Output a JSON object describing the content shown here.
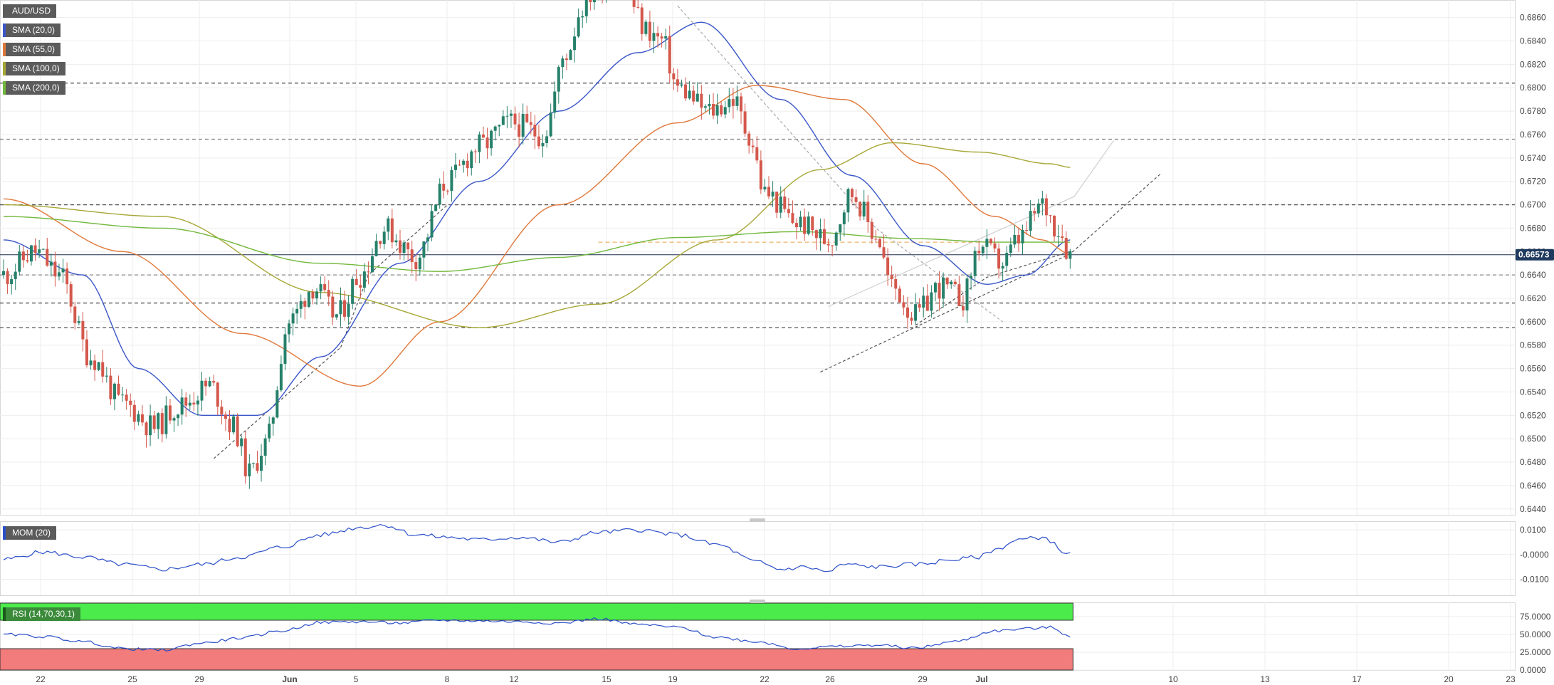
{
  "legend": {
    "symbol": "AUD/USD",
    "sma20": "SMA (20,0)",
    "sma55": "SMA (55,0)",
    "sma100": "SMA (100,0)",
    "sma200": "SMA (200,0)",
    "mom": "MOM (20)",
    "rsi": "RSI (14,70,30,1)"
  },
  "colors": {
    "up": "#26806a",
    "down": "#d4584c",
    "sma20": "#3a56c8",
    "sma55": "#e0783a",
    "sma100": "#a7a736",
    "sma200": "#72b83c",
    "price_line": "#1f2f4f",
    "mom": "#2b4fc8",
    "rsi": "#2b4fc8",
    "rsi_overbought": "#4ceb4c",
    "rsi_oversold": "#f27b7b",
    "last_price_bg": "#1f3a5f"
  },
  "chart_data": [
    {
      "type": "candlestick",
      "title": "AUD/USD",
      "y_ticks": [
        "0.6860",
        "0.6840",
        "0.6820",
        "0.6800",
        "0.6780",
        "0.6760",
        "0.6740",
        "0.6720",
        "0.6700",
        "0.6680",
        "0.6660",
        "0.6640",
        "0.6620",
        "0.6600",
        "0.6580",
        "0.6560",
        "0.6540",
        "0.6520",
        "0.6500",
        "0.6480",
        "0.6460",
        "0.6440"
      ],
      "ylim": [
        0.6435,
        0.6875
      ],
      "x_ticks": [
        "22",
        "25",
        "29",
        "Jun",
        "5",
        "8",
        "12",
        "15",
        "19",
        "22",
        "26",
        "29",
        "Jul",
        "10",
        "13",
        "17",
        "20",
        "23"
      ],
      "last_price": "0.66573",
      "last_value": 0.66573,
      "horizontal_levels": [
        0.6804,
        0.6756,
        0.67,
        0.664,
        0.6616,
        0.6595
      ],
      "anchors": [
        [
          0,
          0.664
        ],
        [
          8,
          0.666
        ],
        [
          14,
          0.664
        ],
        [
          22,
          0.657
        ],
        [
          30,
          0.653
        ],
        [
          38,
          0.651
        ],
        [
          44,
          0.6528
        ],
        [
          52,
          0.6545
        ],
        [
          58,
          0.651
        ],
        [
          62,
          0.647
        ],
        [
          66,
          0.6495
        ],
        [
          72,
          0.66
        ],
        [
          78,
          0.663
        ],
        [
          84,
          0.6605
        ],
        [
          90,
          0.664
        ],
        [
          96,
          0.668
        ],
        [
          104,
          0.6655
        ],
        [
          112,
          0.672
        ],
        [
          120,
          0.675
        ],
        [
          128,
          0.677
        ],
        [
          136,
          0.676
        ],
        [
          142,
          0.683
        ],
        [
          146,
          0.687
        ],
        [
          150,
          0.689
        ],
        [
          156,
          0.689
        ],
        [
          162,
          0.685
        ],
        [
          166,
          0.684
        ],
        [
          170,
          0.68
        ],
        [
          178,
          0.678
        ],
        [
          184,
          0.679
        ],
        [
          188,
          0.676
        ],
        [
          192,
          0.671
        ],
        [
          200,
          0.6685
        ],
        [
          208,
          0.667
        ],
        [
          214,
          0.671
        ],
        [
          220,
          0.6675
        ],
        [
          224,
          0.663
        ],
        [
          230,
          0.6605
        ],
        [
          236,
          0.663
        ],
        [
          242,
          0.662
        ],
        [
          246,
          0.6665
        ],
        [
          252,
          0.665
        ],
        [
          256,
          0.667
        ],
        [
          262,
          0.67
        ],
        [
          266,
          0.668
        ],
        [
          269,
          0.6658
        ]
      ],
      "series": [
        {
          "name": "SMA (20,0)",
          "values": [
            [
              0,
              0.667
            ],
            [
              20,
              0.664
            ],
            [
              34,
              0.656
            ],
            [
              50,
              0.652
            ],
            [
              64,
              0.652
            ],
            [
              80,
              0.657
            ],
            [
              100,
              0.665
            ],
            [
              120,
              0.672
            ],
            [
              140,
              0.678
            ],
            [
              160,
              0.683
            ],
            [
              176,
              0.6856
            ],
            [
              196,
              0.679
            ],
            [
              214,
              0.6725
            ],
            [
              232,
              0.6665
            ],
            [
              248,
              0.6632
            ],
            [
              258,
              0.664
            ],
            [
              269,
              0.667
            ]
          ]
        },
        {
          "name": "SMA (55,0)",
          "values": [
            [
              0,
              0.6705
            ],
            [
              30,
              0.666
            ],
            [
              60,
              0.659
            ],
            [
              90,
              0.6545
            ],
            [
              110,
              0.66
            ],
            [
              140,
              0.67
            ],
            [
              170,
              0.677
            ],
            [
              190,
              0.6802
            ],
            [
              212,
              0.679
            ],
            [
              232,
              0.6735
            ],
            [
              250,
              0.669
            ],
            [
              262,
              0.667
            ],
            [
              269,
              0.6658
            ]
          ]
        },
        {
          "name": "SMA (100,0)",
          "values": [
            [
              0,
              0.67
            ],
            [
              40,
              0.669
            ],
            [
              80,
              0.6625
            ],
            [
              120,
              0.6595
            ],
            [
              150,
              0.6615
            ],
            [
              180,
              0.667
            ],
            [
              206,
              0.673
            ],
            [
              224,
              0.6753
            ],
            [
              246,
              0.6745
            ],
            [
              264,
              0.6735
            ],
            [
              269,
              0.6732
            ]
          ]
        },
        {
          "name": "SMA (200,0)",
          "values": [
            [
              0,
              0.669
            ],
            [
              40,
              0.668
            ],
            [
              80,
              0.665
            ],
            [
              110,
              0.6643
            ],
            [
              140,
              0.6655
            ],
            [
              170,
              0.6672
            ],
            [
              200,
              0.6677
            ],
            [
              230,
              0.6671
            ],
            [
              250,
              0.6668
            ],
            [
              269,
              0.6668
            ]
          ]
        }
      ]
    },
    {
      "type": "line",
      "title": "MOM (20)",
      "y_ticks": [
        "0.0100",
        "-0.0000",
        "-0.0100"
      ],
      "ylim": [
        -0.0165,
        0.0135
      ],
      "values": [
        [
          0,
          -0.002
        ],
        [
          10,
          0.001
        ],
        [
          20,
          -0.001
        ],
        [
          30,
          -0.004
        ],
        [
          40,
          -0.006
        ],
        [
          50,
          -0.004
        ],
        [
          60,
          -0.001
        ],
        [
          70,
          0.003
        ],
        [
          80,
          0.008
        ],
        [
          90,
          0.011
        ],
        [
          96,
          0.012
        ],
        [
          104,
          0.008
        ],
        [
          112,
          0.007
        ],
        [
          120,
          0.006
        ],
        [
          130,
          0.007
        ],
        [
          140,
          0.005
        ],
        [
          150,
          0.009
        ],
        [
          160,
          0.01
        ],
        [
          170,
          0.008
        ],
        [
          180,
          0.004
        ],
        [
          190,
          -0.003
        ],
        [
          196,
          -0.006
        ],
        [
          202,
          -0.005
        ],
        [
          208,
          -0.007
        ],
        [
          212,
          -0.004
        ],
        [
          220,
          -0.005
        ],
        [
          230,
          -0.004
        ],
        [
          240,
          -0.002
        ],
        [
          246,
          -0.001
        ],
        [
          250,
          0.002
        ],
        [
          256,
          0.006
        ],
        [
          262,
          0.007
        ],
        [
          269,
          0.0
        ]
      ]
    },
    {
      "type": "line",
      "title": "RSI (14,70,30,1)",
      "y_ticks": [
        "75.0000",
        "50.0000",
        "25.0000",
        "0.0000"
      ],
      "ylim": [
        0,
        95
      ],
      "overbought": 70,
      "oversold": 30,
      "values": [
        [
          0,
          50
        ],
        [
          10,
          47
        ],
        [
          20,
          40
        ],
        [
          30,
          30
        ],
        [
          40,
          28
        ],
        [
          50,
          38
        ],
        [
          60,
          45
        ],
        [
          70,
          55
        ],
        [
          80,
          67
        ],
        [
          90,
          68
        ],
        [
          100,
          66
        ],
        [
          110,
          70
        ],
        [
          120,
          69
        ],
        [
          130,
          68
        ],
        [
          140,
          66
        ],
        [
          150,
          72
        ],
        [
          160,
          64
        ],
        [
          170,
          60
        ],
        [
          180,
          46
        ],
        [
          190,
          40
        ],
        [
          200,
          30
        ],
        [
          210,
          33
        ],
        [
          220,
          35
        ],
        [
          230,
          31
        ],
        [
          240,
          40
        ],
        [
          250,
          55
        ],
        [
          258,
          58
        ],
        [
          264,
          60
        ],
        [
          269,
          48
        ]
      ]
    }
  ]
}
